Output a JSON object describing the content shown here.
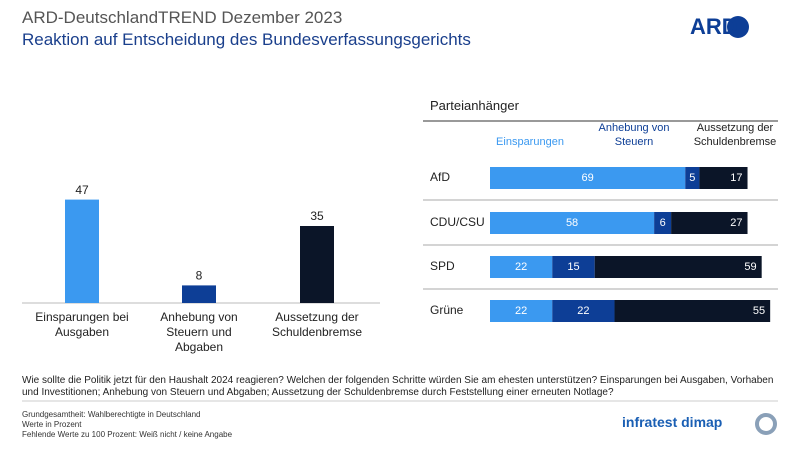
{
  "header": {
    "title": "ARD-DeutschlandTREND Dezember 2023",
    "subtitle": "Reaktion auf Entscheidung des Bundesverfassungsgerichts",
    "logo": "ARD"
  },
  "chart_data": [
    {
      "type": "bar",
      "categories": [
        "Einsparungen bei Ausgaben",
        "Anhebung von Steuern und Abgaben",
        "Aussetzung der Schuldenbremse"
      ],
      "values": [
        47,
        8,
        35
      ],
      "colors": [
        "#3b99f0",
        "#0d3e96",
        "#0b1528"
      ]
    },
    {
      "type": "stacked-bar-horizontal",
      "title": "Parteianhänger",
      "categories": [
        "AfD",
        "CDU/CSU",
        "SPD",
        "Grüne"
      ],
      "series": [
        {
          "name": "Einsparungen",
          "color": "#3b99f0",
          "values": [
            69,
            58,
            22,
            22
          ]
        },
        {
          "name": "Anhebung von Steuern",
          "color": "#0d3e96",
          "values": [
            5,
            6,
            15,
            22
          ]
        },
        {
          "name": "Aussetzung der Schuldenbremse",
          "color": "#0b1528",
          "values": [
            17,
            27,
            59,
            55
          ]
        }
      ]
    }
  ],
  "question": "Wie sollte die Politik jetzt für den Haushalt 2024 reagieren? Welchen der folgenden Schritte würden Sie am ehesten unterstützen? Einsparungen bei Ausgaben, Vorhaben und Investitionen; Anhebung von Steuern und Abgaben; Aussetzung der Schuldenbremse durch Feststellung einer erneuten Notlage?",
  "footer": {
    "notes": [
      "Grundgesamtheit: Wahlberechtigte in Deutschland",
      "Werte in Prozent",
      "Fehlende Werte zu 100 Prozent: Weiß nicht / keine Angabe"
    ],
    "logo": "infratest dimap"
  }
}
